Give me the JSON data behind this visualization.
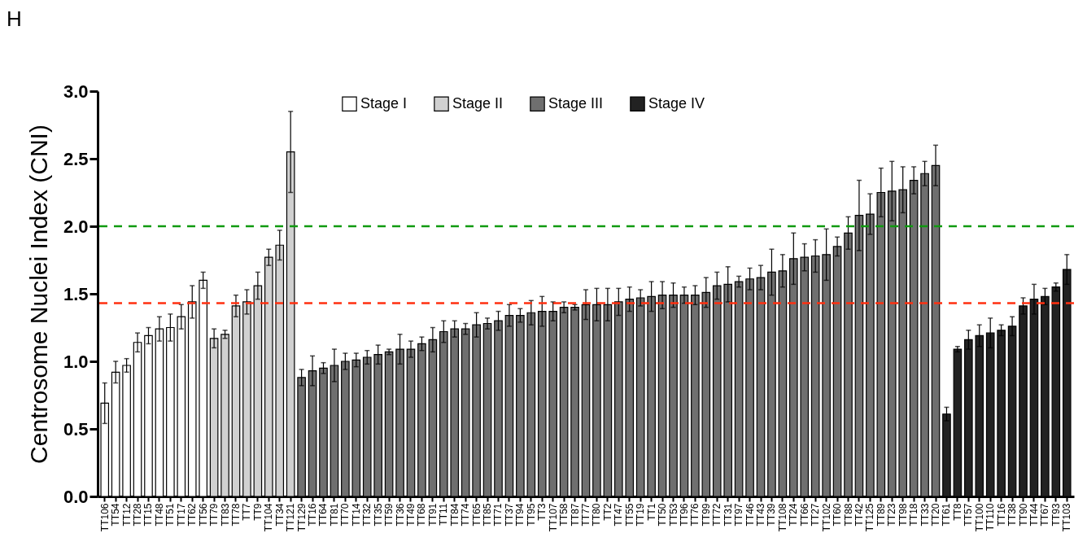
{
  "chart_data": {
    "type": "bar",
    "ylabel": "Centrosome Nuclei Index (CNI)",
    "annotations": [
      "H"
    ],
    "categories": [
      "TT106",
      "TT54",
      "TT12",
      "TT28",
      "TT15",
      "TT48",
      "TT51",
      "TT17",
      "TT62",
      "TT56",
      "TT79",
      "TT83",
      "TT78",
      "TT7",
      "TT9",
      "TT104",
      "TT34",
      "TT121",
      "TT129",
      "TT16",
      "TT64",
      "TT81",
      "TT70",
      "TT14",
      "TT32",
      "TT35",
      "TT59",
      "TT36",
      "TT49",
      "TT68",
      "TT91",
      "TT11",
      "TT84",
      "TT74",
      "TT65",
      "TT85",
      "TT71",
      "TT37",
      "TT94",
      "TT95",
      "TT3",
      "TT107",
      "TT58",
      "TT87",
      "TT77",
      "TT80",
      "TT2",
      "TT47",
      "TT55",
      "TT19",
      "TT1",
      "TT50",
      "TT53",
      "TT96",
      "TT76",
      "TT99",
      "TT72",
      "TT31",
      "TT97",
      "TT46",
      "TT43",
      "TT39",
      "TT108",
      "TT24",
      "TT66",
      "TT27",
      "TT102",
      "TT60",
      "TT88",
      "TT42",
      "TT125",
      "TT89",
      "TT23",
      "TT98",
      "TT18",
      "TT33",
      "TT20",
      "TT61",
      "TT8",
      "TT57",
      "TT100",
      "TT110",
      "TT16",
      "TT38",
      "TT90",
      "TT44",
      "TT67",
      "TT93",
      "TT103"
    ],
    "series": [
      {
        "name": "Stage I",
        "color": "#ffffff",
        "values": [
          0.69,
          0.92,
          0.97,
          1.14,
          1.19,
          1.24,
          1.25,
          1.33,
          1.44,
          1.6,
          null,
          null,
          null,
          null,
          null,
          null,
          null,
          null,
          null,
          null,
          null,
          null,
          null,
          null,
          null,
          null,
          null,
          null,
          null,
          null,
          null,
          null,
          null,
          null,
          null,
          null,
          null,
          null,
          null,
          null,
          null,
          null,
          null,
          null,
          null,
          null,
          null,
          null,
          null,
          null,
          null,
          null,
          null,
          null,
          null,
          null,
          null,
          null,
          null,
          null,
          null,
          null,
          null,
          null,
          null,
          null,
          null,
          null,
          null,
          null,
          null,
          null,
          null,
          null,
          null,
          null,
          null,
          null,
          null,
          null,
          null,
          null,
          null,
          null,
          null,
          null,
          null,
          null,
          null
        ],
        "errors": [
          0.15,
          0.08,
          0.05,
          0.07,
          0.06,
          0.09,
          0.1,
          0.09,
          0.12,
          0.06,
          null,
          null,
          null,
          null,
          null,
          null,
          null,
          null,
          null,
          null,
          null,
          null,
          null,
          null,
          null,
          null,
          null,
          null,
          null,
          null,
          null,
          null,
          null,
          null,
          null,
          null,
          null,
          null,
          null,
          null,
          null,
          null,
          null,
          null,
          null,
          null,
          null,
          null,
          null,
          null,
          null,
          null,
          null,
          null,
          null,
          null,
          null,
          null,
          null,
          null,
          null,
          null,
          null,
          null,
          null,
          null,
          null,
          null,
          null,
          null,
          null,
          null,
          null,
          null,
          null,
          null,
          null,
          null,
          null,
          null,
          null,
          null,
          null,
          null,
          null,
          null,
          null,
          null,
          null
        ]
      },
      {
        "name": "Stage II",
        "color": "#d0d0d0",
        "values": [
          null,
          null,
          null,
          null,
          null,
          null,
          null,
          null,
          null,
          null,
          1.17,
          1.2,
          1.41,
          1.44,
          1.56,
          1.77,
          1.86,
          2.55,
          null,
          null,
          null,
          null,
          null,
          null,
          null,
          null,
          null,
          null,
          null,
          null,
          null,
          null,
          null,
          null,
          null,
          null,
          null,
          null,
          null,
          null,
          null,
          null,
          null,
          null,
          null,
          null,
          null,
          null,
          null,
          null,
          null,
          null,
          null,
          null,
          null,
          null,
          null,
          null,
          null,
          null,
          null,
          null,
          null,
          null,
          null,
          null,
          null,
          null,
          null,
          null,
          null,
          null,
          null,
          null,
          null,
          null,
          null,
          null,
          null,
          null,
          null,
          null,
          null,
          null,
          null,
          null,
          null,
          null,
          null
        ],
        "errors": [
          null,
          null,
          null,
          null,
          null,
          null,
          null,
          null,
          null,
          null,
          0.07,
          0.03,
          0.08,
          0.09,
          0.1,
          0.06,
          0.11,
          0.3,
          null,
          null,
          null,
          null,
          null,
          null,
          null,
          null,
          null,
          null,
          null,
          null,
          null,
          null,
          null,
          null,
          null,
          null,
          null,
          null,
          null,
          null,
          null,
          null,
          null,
          null,
          null,
          null,
          null,
          null,
          null,
          null,
          null,
          null,
          null,
          null,
          null,
          null,
          null,
          null,
          null,
          null,
          null,
          null,
          null,
          null,
          null,
          null,
          null,
          null,
          null,
          null,
          null,
          null,
          null,
          null,
          null,
          null,
          null,
          null,
          null,
          null,
          null,
          null,
          null,
          null,
          null,
          null,
          null,
          null,
          null
        ]
      },
      {
        "name": "Stage III",
        "color": "#6f6f6f",
        "values": [
          null,
          null,
          null,
          null,
          null,
          null,
          null,
          null,
          null,
          null,
          null,
          null,
          null,
          null,
          null,
          null,
          null,
          null,
          0.88,
          0.93,
          0.95,
          0.97,
          1.0,
          1.01,
          1.03,
          1.05,
          1.07,
          1.09,
          1.09,
          1.13,
          1.16,
          1.22,
          1.24,
          1.24,
          1.27,
          1.28,
          1.3,
          1.34,
          1.34,
          1.36,
          1.37,
          1.37,
          1.4,
          1.4,
          1.42,
          1.42,
          1.42,
          1.44,
          1.46,
          1.47,
          1.48,
          1.49,
          1.49,
          1.49,
          1.49,
          1.51,
          1.56,
          1.57,
          1.59,
          1.61,
          1.62,
          1.66,
          1.67,
          1.76,
          1.77,
          1.78,
          1.79,
          1.85,
          1.95,
          2.08,
          2.09,
          2.25,
          2.26,
          2.27,
          2.34,
          2.39,
          2.45,
          null,
          null,
          null,
          null,
          null,
          null,
          null,
          null,
          null,
          null,
          null,
          null
        ],
        "errors": [
          null,
          null,
          null,
          null,
          null,
          null,
          null,
          null,
          null,
          null,
          null,
          null,
          null,
          null,
          null,
          null,
          null,
          null,
          0.06,
          0.11,
          0.04,
          0.12,
          0.06,
          0.05,
          0.05,
          0.07,
          0.02,
          0.11,
          0.06,
          0.05,
          0.09,
          0.08,
          0.06,
          0.04,
          0.09,
          0.04,
          0.07,
          0.08,
          0.05,
          0.09,
          0.11,
          0.07,
          0.04,
          0.02,
          0.11,
          0.12,
          0.12,
          0.1,
          0.09,
          0.06,
          0.11,
          0.1,
          0.09,
          0.06,
          0.07,
          0.11,
          0.1,
          0.13,
          0.04,
          0.08,
          0.09,
          0.17,
          0.12,
          0.19,
          0.1,
          0.12,
          0.19,
          0.07,
          0.12,
          0.26,
          0.15,
          0.18,
          0.22,
          0.17,
          0.1,
          0.09,
          0.15,
          null,
          null,
          null,
          null,
          null,
          null,
          null,
          null,
          null,
          null,
          null,
          null
        ]
      },
      {
        "name": "Stage IV",
        "color": "#222222",
        "values": [
          null,
          null,
          null,
          null,
          null,
          null,
          null,
          null,
          null,
          null,
          null,
          null,
          null,
          null,
          null,
          null,
          null,
          null,
          null,
          null,
          null,
          null,
          null,
          null,
          null,
          null,
          null,
          null,
          null,
          null,
          null,
          null,
          null,
          null,
          null,
          null,
          null,
          null,
          null,
          null,
          null,
          null,
          null,
          null,
          null,
          null,
          null,
          null,
          null,
          null,
          null,
          null,
          null,
          null,
          null,
          null,
          null,
          null,
          null,
          null,
          null,
          null,
          null,
          null,
          null,
          null,
          null,
          null,
          null,
          null,
          null,
          null,
          null,
          null,
          null,
          null,
          null,
          0.61,
          1.09,
          1.16,
          1.19,
          1.21,
          1.23,
          1.26,
          1.41,
          1.46,
          1.48,
          1.55,
          1.68
        ],
        "errors": [
          null,
          null,
          null,
          null,
          null,
          null,
          null,
          null,
          null,
          null,
          null,
          null,
          null,
          null,
          null,
          null,
          null,
          null,
          null,
          null,
          null,
          null,
          null,
          null,
          null,
          null,
          null,
          null,
          null,
          null,
          null,
          null,
          null,
          null,
          null,
          null,
          null,
          null,
          null,
          null,
          null,
          null,
          null,
          null,
          null,
          null,
          null,
          null,
          null,
          null,
          null,
          null,
          null,
          null,
          null,
          null,
          null,
          null,
          null,
          null,
          null,
          null,
          null,
          null,
          null,
          null,
          null,
          null,
          null,
          null,
          null,
          null,
          null,
          null,
          null,
          null,
          null,
          0.05,
          0.02,
          0.07,
          0.08,
          0.11,
          0.04,
          0.07,
          0.06,
          0.11,
          0.06,
          0.03,
          0.11
        ]
      }
    ],
    "ylim": [
      0,
      3
    ],
    "yticks": [
      {
        "value": 0,
        "label": "0.0"
      },
      {
        "value": 0.5,
        "label": "0.5"
      },
      {
        "value": 1,
        "label": "1.0"
      },
      {
        "value": 1.5,
        "label": "1.5"
      },
      {
        "value": 2,
        "label": "2.0"
      },
      {
        "value": 2.5,
        "label": "2.5"
      },
      {
        "value": 3,
        "label": "3.0"
      }
    ],
    "ref_lines": [
      {
        "axis": "y",
        "value": 2.0,
        "color": "#109a10",
        "line_style": "dashed"
      },
      {
        "axis": "y",
        "value": 1.43,
        "color": "#ff3010",
        "line_style": "dashed"
      }
    ],
    "legend": "top",
    "grid": false
  }
}
